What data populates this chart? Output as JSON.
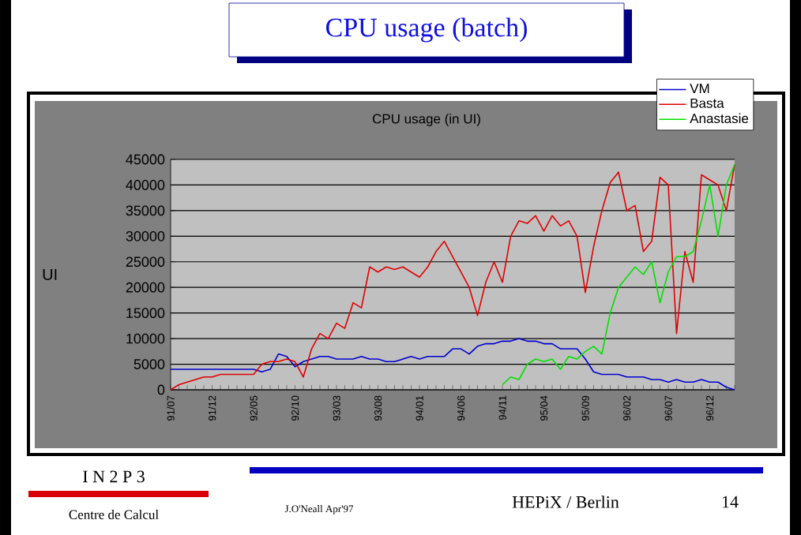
{
  "chart_data": {
    "type": "line",
    "title": "CPU usage (batch)",
    "subtitle": "CPU usage (in UI)",
    "ylabel": "UI",
    "categories": [
      "91/07",
      null,
      null,
      null,
      null,
      "91/12",
      null,
      null,
      null,
      null,
      "92/05",
      null,
      null,
      null,
      null,
      "92/10",
      null,
      null,
      null,
      null,
      "93/03",
      null,
      null,
      null,
      null,
      "93/08",
      null,
      null,
      null,
      null,
      "94/01",
      null,
      null,
      null,
      null,
      "94/06",
      null,
      null,
      null,
      null,
      "94/11",
      null,
      null,
      null,
      null,
      "95/04",
      null,
      null,
      null,
      null,
      "95/09",
      null,
      null,
      null,
      null,
      "96/02",
      null,
      null,
      null,
      null,
      "96/07",
      null,
      null,
      null,
      null,
      "96/12",
      null,
      null,
      null
    ],
    "series": [
      {
        "name": "VM",
        "color": "#0000cc",
        "values": [
          4000,
          4000,
          4000,
          4000,
          4000,
          4000,
          4000,
          4000,
          4000,
          4000,
          4000,
          3500,
          4000,
          7000,
          6500,
          4500,
          5500,
          6000,
          6500,
          6500,
          6000,
          6000,
          6000,
          6500,
          6000,
          6000,
          5500,
          5500,
          6000,
          6500,
          6000,
          6500,
          6500,
          6500,
          8000,
          8000,
          7000,
          8500,
          9000,
          9000,
          9500,
          9500,
          10000,
          9500,
          9500,
          9000,
          9000,
          8000,
          8000,
          8000,
          6000,
          3500,
          3000,
          3000,
          3000,
          2500,
          2500,
          2500,
          2000,
          2000,
          1500,
          2000,
          1500,
          1500,
          2000,
          1500,
          1500,
          500,
          0
        ]
      },
      {
        "name": "Basta",
        "color": "#e00000",
        "values": [
          0,
          1000,
          1500,
          2000,
          2500,
          2500,
          3000,
          3000,
          3000,
          3000,
          3000,
          5000,
          5500,
          5500,
          6000,
          5500,
          2500,
          8000,
          11000,
          10000,
          13000,
          12000,
          17000,
          16000,
          24000,
          23000,
          24000,
          23500,
          24000,
          23000,
          22000,
          24000,
          27000,
          29000,
          26000,
          23000,
          20000,
          14500,
          21000,
          25000,
          21000,
          30000,
          33000,
          32500,
          34000,
          31000,
          34000,
          32000,
          33000,
          30000,
          19000,
          28000,
          35000,
          40500,
          42500,
          35000,
          36000,
          27000,
          29000,
          41500,
          40000,
          11000,
          27000,
          21000,
          42000,
          41000,
          40000,
          35000,
          44000
        ]
      },
      {
        "name": "Anastasie",
        "color": "#00e000",
        "values": [
          null,
          null,
          null,
          null,
          null,
          null,
          null,
          null,
          null,
          null,
          null,
          null,
          null,
          null,
          null,
          null,
          null,
          null,
          null,
          null,
          null,
          null,
          null,
          null,
          null,
          null,
          null,
          null,
          null,
          null,
          null,
          null,
          null,
          null,
          null,
          null,
          null,
          null,
          null,
          null,
          1000,
          2500,
          2000,
          5000,
          6000,
          5500,
          6000,
          4000,
          6500,
          6000,
          7500,
          8500,
          7000,
          15000,
          20000,
          22000,
          24000,
          22500,
          25000,
          17000,
          23000,
          26000,
          26000,
          27000,
          33000,
          40000,
          30000,
          40000,
          44000
        ]
      }
    ],
    "ylim": [
      0,
      45000
    ],
    "yticks": [
      0,
      5000,
      10000,
      15000,
      20000,
      25000,
      30000,
      35000,
      40000,
      45000
    ],
    "grid": "y",
    "legend": "top right",
    "annotations": [
      "I N 2 P 3",
      "Centre de Calcul",
      "J.O'Neall Apr'97",
      "HEPiX / Berlin",
      "14"
    ]
  }
}
